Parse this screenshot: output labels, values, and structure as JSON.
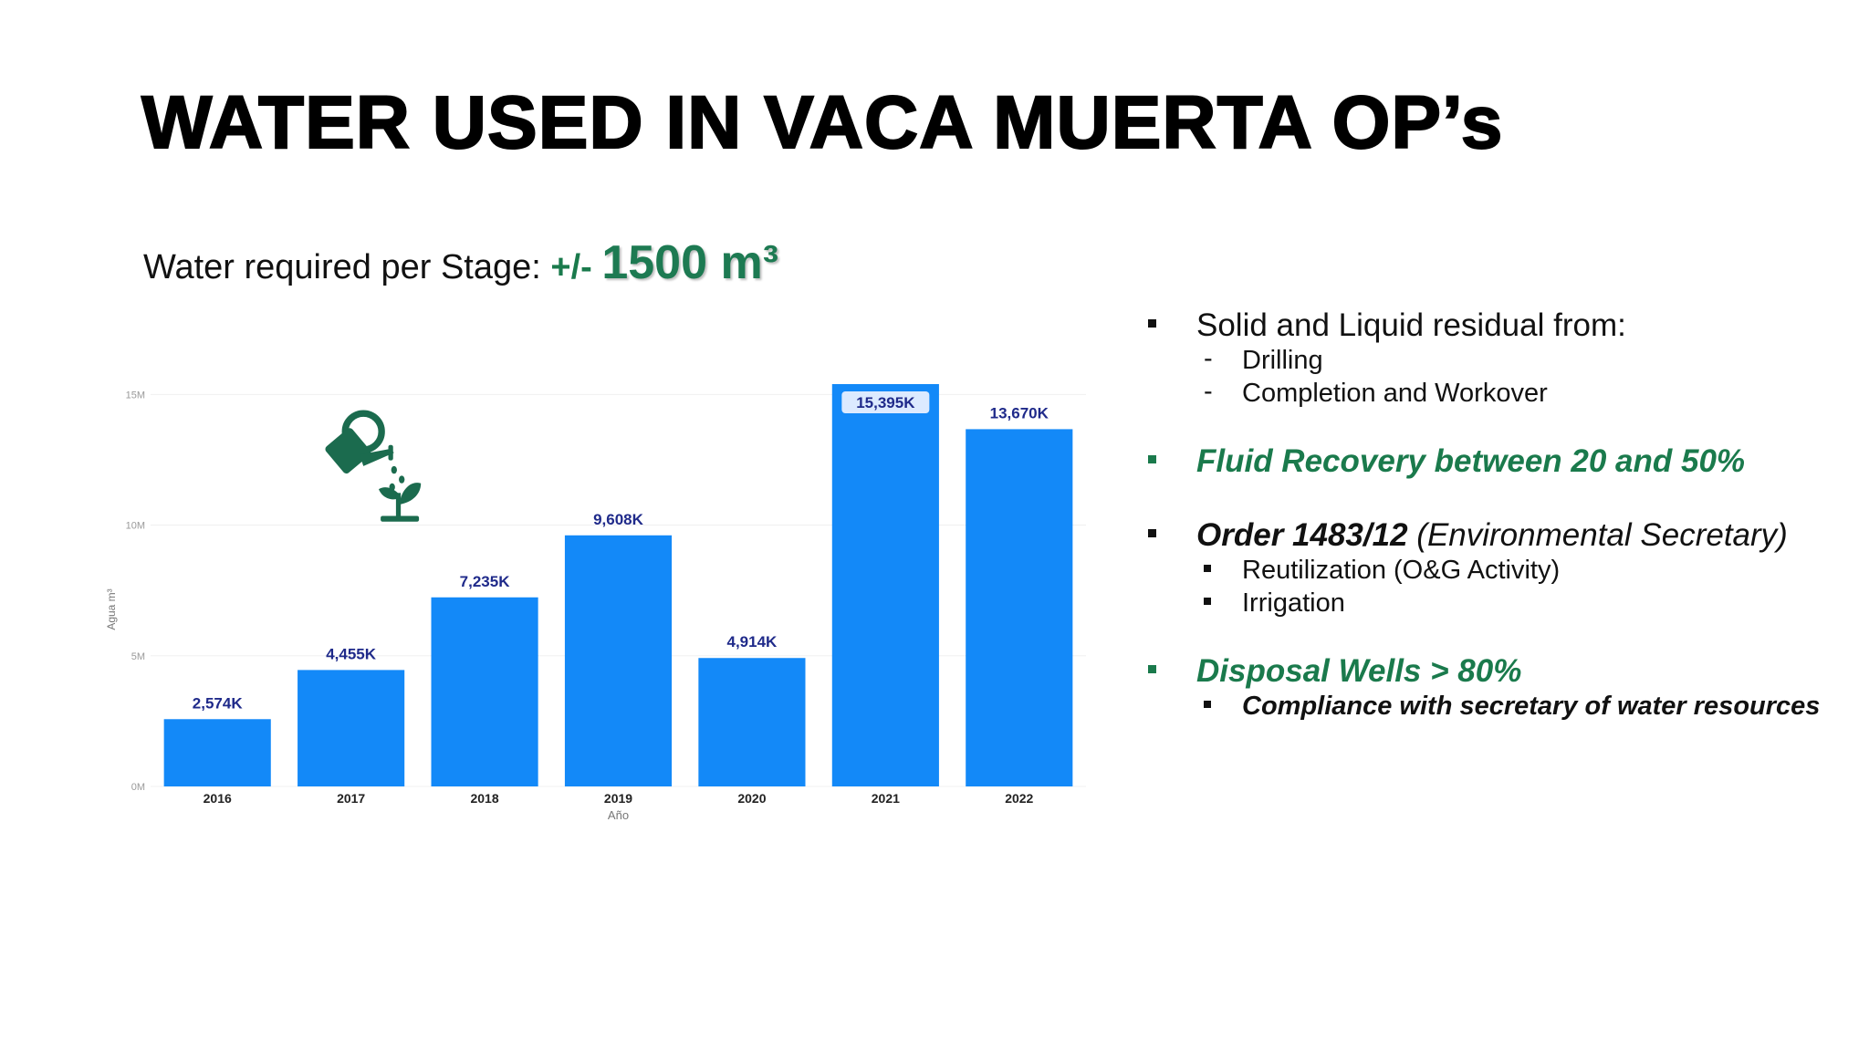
{
  "slide": {
    "title": "WATER USED IN VACA MUERTA OP’s",
    "subtitle": {
      "prefix": "Water required per Stage: ",
      "approx": "+/- ",
      "value": "1500 m³"
    }
  },
  "icon": {
    "name": "watering-can-plant-icon",
    "color": "#1b6b4e"
  },
  "chart_data": {
    "type": "bar",
    "categories": [
      "2016",
      "2017",
      "2018",
      "2019",
      "2020",
      "2021",
      "2022"
    ],
    "values": [
      2574,
      4455,
      7235,
      9608,
      4914,
      15395,
      13670
    ],
    "value_unit": "K",
    "data_labels": [
      "2,574K",
      "4,455K",
      "7,235K",
      "9,608K",
      "4,914K",
      "15,395K",
      "13,670K"
    ],
    "highlighted_label_index": 5,
    "y_ticks": [
      "0M",
      "5M",
      "10M",
      "15M"
    ],
    "y_tick_values": [
      0,
      5000,
      10000,
      15000
    ],
    "ylim": [
      0,
      15500
    ],
    "xlabel": "Año",
    "ylabel": "Agua m³",
    "bar_color": "#1389f8",
    "label_color": "#1f2a8a",
    "grid": true
  },
  "bullets": [
    {
      "style": "normal",
      "text": "Solid and Liquid residual from:",
      "subs": [
        "Drilling",
        "Completion and Workover"
      ],
      "sub_marker": "-"
    },
    {
      "style": "green",
      "text": "Fluid Recovery between 20 and 50%"
    },
    {
      "style": "order",
      "bold_part": "Order 1483/12",
      "rest": " (Environmental Secretary)",
      "subs": [
        "Reutilization (O&G Activity)",
        "Irrigation"
      ]
    },
    {
      "style": "green",
      "text": "Disposal Wells > 80%",
      "subs": [
        "Compliance with secretary of water resources"
      ]
    }
  ],
  "colors": {
    "green": "#1a7a4c",
    "bar": "#1389f8",
    "text": "#111111"
  }
}
